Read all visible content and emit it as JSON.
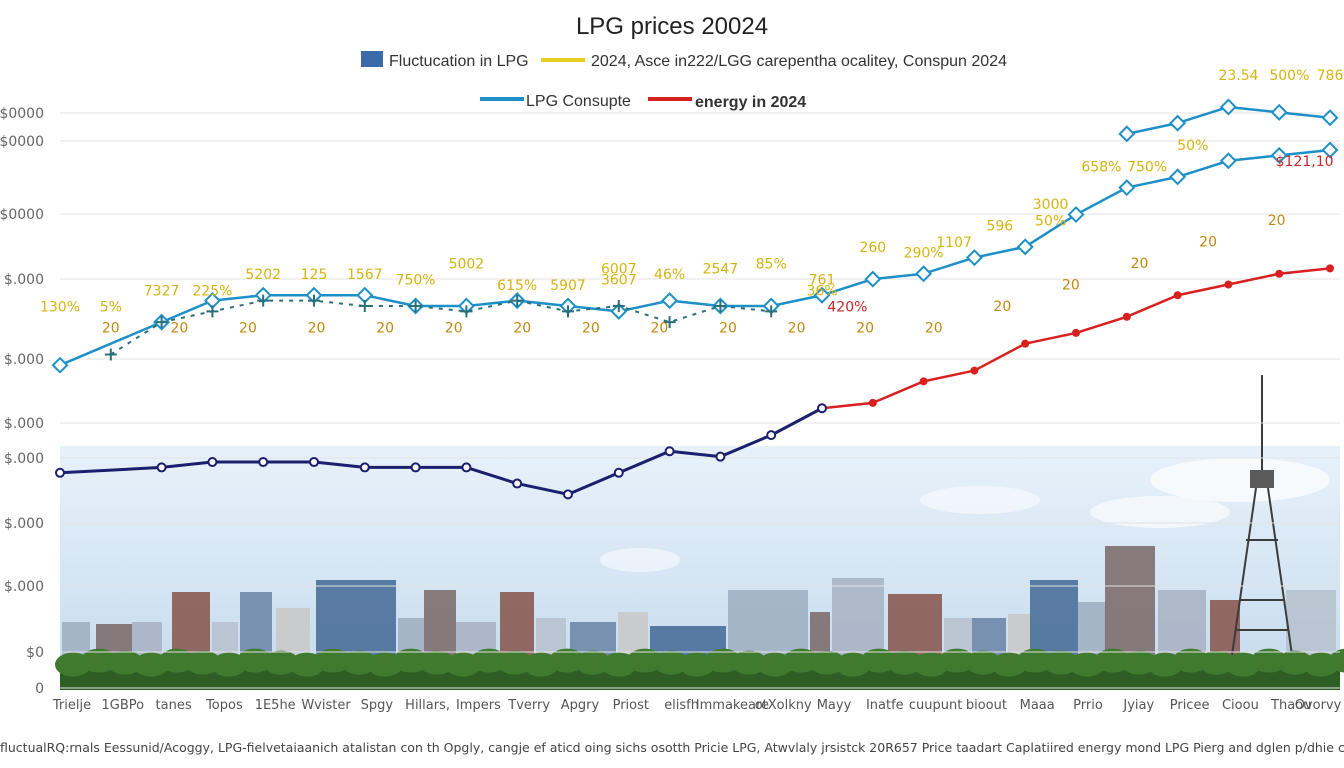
{
  "chart_data": {
    "type": "line",
    "title": "LPG prices 20024",
    "legend": [
      {
        "name": "Fluctucation in LPG",
        "color": "#3b6aa8",
        "marker": "box"
      },
      {
        "name": "2024, Asce in222/LGG carepentha ocalitey, Conspun 2024",
        "color": "#e8cf1f",
        "marker": "line"
      },
      {
        "name": "LPG Consupte",
        "color": "#1e90c8",
        "marker": "line"
      },
      {
        "name": "energy in 2024",
        "color": "#d92020",
        "marker": "line"
      }
    ],
    "y_tick_labels": [
      "$0000",
      "$0000",
      "$0000",
      "$.000",
      "$.000",
      "$.000",
      "$.000",
      "$.000",
      "$.000",
      "$0",
      "0"
    ],
    "ylim": [
      0,
      100
    ],
    "x": [
      "Trielje",
      "1GBPo",
      "tanes",
      "Topos",
      "1E5he",
      "Wvister",
      "Spgy",
      "Hillars,",
      "Impers",
      "Tverry",
      "Apgry",
      "Priost",
      "elisfh",
      "Immakeare",
      "otXolkny",
      "Mayy",
      "Inatfe",
      "cuupunt",
      "bioout",
      "Maaa",
      "Prrio",
      "Jyiay",
      "Pricee",
      "Cioou",
      "Thaou",
      "Ovorvy"
    ],
    "series": [
      {
        "name": "LPG Consupte (blue)",
        "color": "#1e90c8",
        "x": [
          0,
          2,
          3,
          4,
          5,
          6,
          7,
          8,
          9,
          10,
          11,
          12,
          13,
          14,
          15,
          16,
          17,
          18,
          19,
          20,
          21,
          22,
          23,
          24,
          25
        ],
        "values": [
          60,
          68,
          72,
          73,
          73,
          73,
          71,
          71,
          72,
          71,
          70,
          72,
          71,
          71,
          73,
          76,
          77,
          80,
          82,
          88,
          93,
          95,
          98,
          99,
          100
        ]
      },
      {
        "name": "upper blue",
        "color": "#1e90c8",
        "x": [
          21,
          22,
          23,
          24,
          25
        ],
        "values": [
          103,
          105,
          108,
          107,
          106
        ]
      },
      {
        "name": "energy in 2024 (red)",
        "color": "#d92020",
        "x": [
          15,
          16,
          17,
          18,
          19,
          20,
          21,
          22,
          23,
          24,
          25
        ],
        "values": [
          52,
          53,
          57,
          59,
          64,
          66,
          69,
          73,
          75,
          77,
          78
        ]
      },
      {
        "name": "navy",
        "color": "#1a1f6e",
        "x": [
          0,
          2,
          3,
          4,
          5,
          6,
          7,
          8,
          9,
          10,
          11,
          12,
          13,
          14,
          15
        ],
        "values": [
          40,
          41,
          42,
          42,
          42,
          41,
          41,
          41,
          38,
          36,
          40,
          44,
          43,
          47,
          52
        ]
      },
      {
        "name": "dashed teal",
        "color": "#2a6f7a",
        "x": [
          1,
          2,
          3,
          4,
          5,
          6,
          7,
          8,
          9,
          10,
          11,
          12,
          13,
          14
        ],
        "values": [
          62,
          68,
          70,
          72,
          72,
          71,
          71,
          70,
          72,
          70,
          71,
          68,
          71,
          70
        ]
      }
    ],
    "data_labels": [
      "130%",
      "5%",
      "7327",
      "225%",
      "5202",
      "125",
      "1567",
      "750%",
      "5002",
      "615%",
      "5907",
      "6007",
      "3607",
      "46%",
      "2547",
      "85%",
      "761",
      "36%",
      "420%",
      "260",
      "290%",
      "1107",
      "596",
      "50%",
      "3000",
      "658%",
      "750%",
      "50%",
      "23.54",
      "500%",
      "786",
      "$121,10"
    ],
    "marker_labels": [
      "20",
      "20",
      "20",
      "20",
      "20",
      "20",
      "20",
      "20",
      "20",
      "20",
      "20",
      "20",
      "20",
      "20",
      "20",
      "20",
      "20",
      "20"
    ]
  },
  "footer": "fluctualRQ:rnals Eessunid/Acoggy, LPG-fielvetaiaanich atalistan con th Opgly, cangje ef aticd oing sichs osotth Pricie LPG, Atwvlaly jrsistck 20R657 Price taadart Caplatiired energy mond LPG Pierg and dglen p/dhie cupillet."
}
